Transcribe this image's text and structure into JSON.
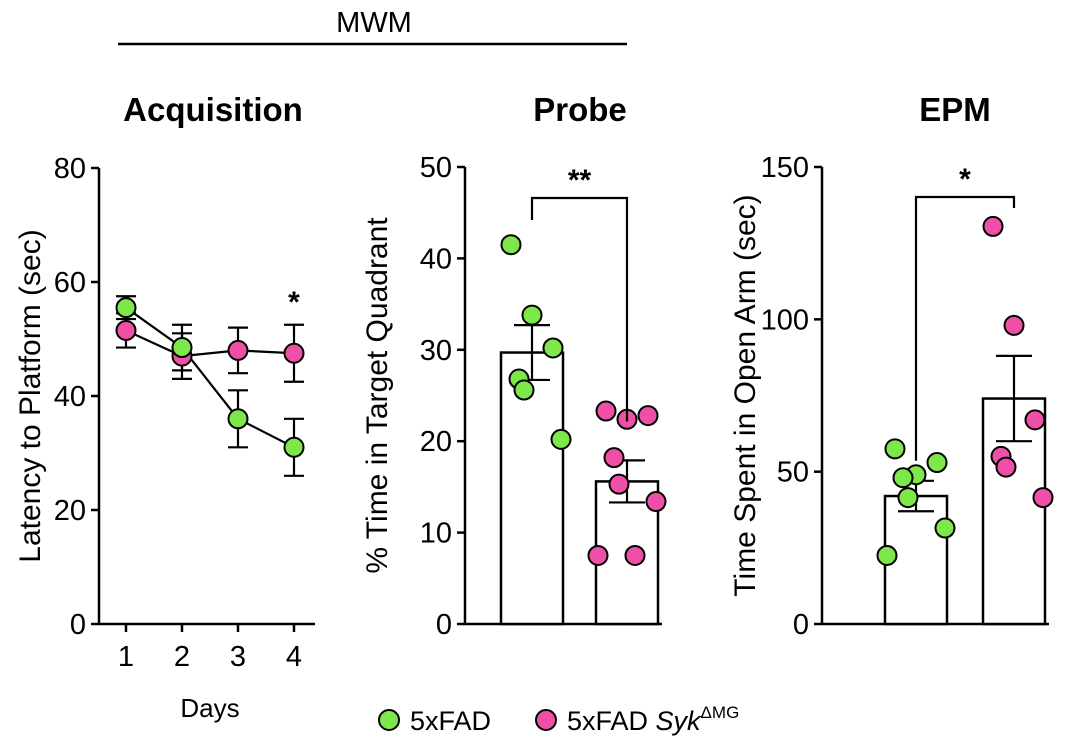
{
  "header": {
    "label": "MWM"
  },
  "legend": [
    {
      "label": "5xFAD",
      "color": "#7ee84a"
    },
    {
      "label": "5xFAD ",
      "italic": "Syk",
      "sup": "ΔMG",
      "color": "#ef4fa6"
    }
  ],
  "chart_data": [
    {
      "type": "line",
      "title": "Acquisition",
      "xlabel": "Days",
      "ylabel": "Latency to Platform (sec)",
      "ylim": [
        0,
        80
      ],
      "yticks": [
        0,
        20,
        40,
        60,
        80
      ],
      "x": [
        1,
        2,
        3,
        4
      ],
      "series": [
        {
          "name": "5xFAD",
          "color": "#7ee84a",
          "values": [
            55.5,
            48.5,
            36,
            31
          ],
          "err": [
            2,
            4,
            5,
            5
          ]
        },
        {
          "name": "5xFAD SykΔMG",
          "color": "#ef4fa6",
          "values": [
            51.5,
            47,
            48,
            47.5
          ],
          "err": [
            3,
            4,
            4,
            5
          ]
        }
      ],
      "annotations": [
        {
          "x": 4,
          "text": "*"
        }
      ]
    },
    {
      "type": "bar",
      "title": "Probe",
      "ylabel": "% Time in Target Quadrant",
      "ylim": [
        0,
        50
      ],
      "yticks": [
        0,
        10,
        20,
        30,
        40,
        50
      ],
      "series": [
        {
          "name": "5xFAD",
          "color": "#7ee84a",
          "mean": 29.7,
          "sem": 3.0,
          "points": [
            41.5,
            33.8,
            30.2,
            26.8,
            25.6,
            20.2
          ]
        },
        {
          "name": "5xFAD SykΔMG",
          "color": "#ef4fa6",
          "mean": 15.6,
          "sem": 2.3,
          "points": [
            23.3,
            22.4,
            22.8,
            18.2,
            15.3,
            13.4,
            7.5,
            7.5
          ]
        }
      ],
      "significance": "**"
    },
    {
      "type": "bar",
      "title": "EPM",
      "ylabel": "Time Spent in Open Arm (sec)",
      "ylim": [
        0,
        150
      ],
      "yticks": [
        0,
        50,
        100,
        150
      ],
      "series": [
        {
          "name": "5xFAD",
          "color": "#7ee84a",
          "mean": 42,
          "sem": 5,
          "points": [
            57.5,
            49,
            53,
            48,
            41.5,
            31.5,
            22.5
          ]
        },
        {
          "name": "5xFAD SykΔMG",
          "color": "#ef4fa6",
          "mean": 74,
          "sem": 14,
          "points": [
            130.5,
            98,
            67,
            55,
            51.5,
            41.5
          ]
        }
      ],
      "significance": "*"
    }
  ]
}
